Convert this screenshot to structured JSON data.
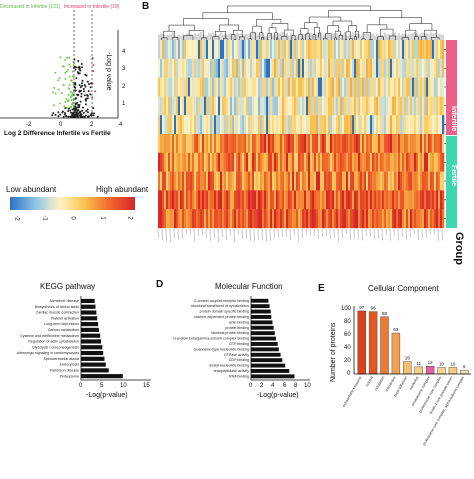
{
  "panel_b_label": "B",
  "panel_d_label": "D",
  "panel_e_label": "E",
  "volcano": {
    "decreased_label": "Decreased in Infertile (131)",
    "increased_label": "Increased in Infertile (19)",
    "xlabel": "Log 2 Difference Infertile vs Fertile",
    "ylabel": "-Log p value",
    "x_ticks": [
      "-2",
      "0",
      "2",
      "4"
    ],
    "y_ticks": [
      "1",
      "2",
      "3",
      "4"
    ]
  },
  "heatmap_legend": {
    "low": "Low abundant",
    "high": "High abundant",
    "ticks": [
      "-2",
      "-1",
      "0",
      "1",
      "2"
    ]
  },
  "group": {
    "title": "Group",
    "infertile": "Infertile",
    "fertile": "Fertile",
    "infertile_color": "#ec5f8a",
    "fertile_color": "#3dd6b0"
  },
  "kegg": {
    "title": "KEGG pathway",
    "xlabel": "-Log(p-value)",
    "x_ticks": [
      "0",
      "5",
      "10",
      "15"
    ]
  },
  "mf": {
    "title": "Molecular Function",
    "xlabel": "-Log(p-value)",
    "x_ticks": [
      "0",
      "2",
      "4",
      "6",
      "8",
      "10"
    ]
  },
  "cc": {
    "title": "Cellular Component",
    "ylabel": "Number of proteins",
    "y_ticks": [
      "0",
      "20",
      "40",
      "60",
      "80",
      "100"
    ]
  },
  "chart_data": [
    {
      "type": "bar",
      "orientation": "horizontal",
      "title": "KEGG pathway",
      "xlabel": "-Log(p-value)",
      "xlim": [
        0,
        15
      ],
      "categories": [
        "Alzheimer disease",
        "Biosynthesis of amino acids",
        "Cardiac muscle contraction",
        "Platelet activation",
        "Long-term depression",
        "Carbon metabolism",
        "Cysteine and methionine metabolism",
        "Regulation of actin cytoskeleton",
        "Glycolysis / Gluconeogenesis",
        "Adrenergic signaling in cardiomyocytes",
        "Spinocerebellar ataxia",
        "Endocytosis",
        "Parkinson disease",
        "Proteasome"
      ],
      "values": [
        3.2,
        3.4,
        3.6,
        3.8,
        4.0,
        4.2,
        4.5,
        4.7,
        5.0,
        5.2,
        5.5,
        5.8,
        6.5,
        9.8
      ]
    },
    {
      "type": "bar",
      "orientation": "horizontal",
      "title": "Molecular Function",
      "xlabel": "-Log(p-value)",
      "xlim": [
        0,
        10
      ],
      "categories": [
        "G-protein coupled receptor binding",
        "structural constituent of cytoskeleton",
        "protein domain specific binding",
        "calcium-dependent protein binding",
        "actin binding",
        "protein binding",
        "identical protein binding",
        "G-protein beta/gamma-subunit complex binding",
        "GTP binding",
        "Guanosine-type nucleotide binding",
        "GTPase activity",
        "GDP binding",
        "anatyl-nucleotide binding",
        "endopeptidase activity",
        "RNA binding"
      ],
      "values": [
        3.0,
        3.2,
        3.4,
        3.5,
        3.7,
        3.9,
        4.1,
        4.3,
        4.6,
        4.8,
        5.1,
        5.4,
        5.9,
        6.6,
        7.5
      ]
    },
    {
      "type": "bar",
      "title": "Cellular Component",
      "ylabel": "Number of proteins",
      "ylim": [
        0,
        100
      ],
      "categories": [
        "extracellular exosome",
        "cytosol",
        "cytoplasm",
        "membrane",
        "focal adhesion",
        "nucleolus",
        "proteasome complex",
        "proteasome core complex",
        "ficolin-1-rich granule lumen",
        "proteasome core complex, alpha-subunit complex"
      ],
      "values": [
        97,
        96,
        88,
        63,
        19,
        11,
        12,
        10,
        10,
        6
      ],
      "colors": [
        "#d9421a",
        "#e3581f",
        "#ec7a32",
        "#f3a055",
        "#f6bd6e",
        "#f7cd83",
        "#e1609d",
        "#f7d292",
        "#f6c985",
        "#f1ddb0"
      ]
    }
  ]
}
